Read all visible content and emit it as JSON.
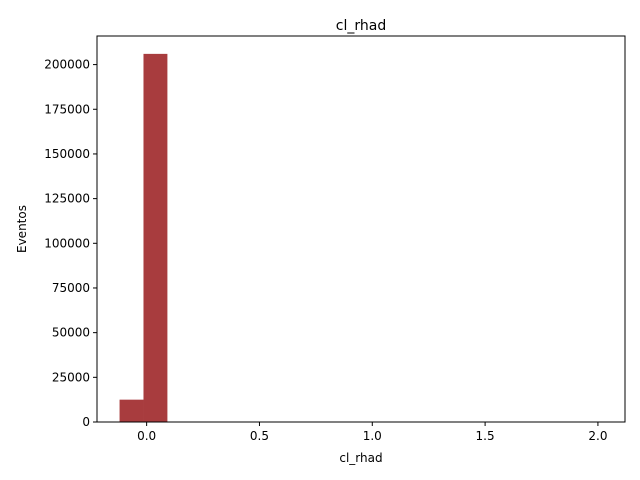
{
  "chart_data": {
    "type": "bar",
    "title": "cl_rhad",
    "xlabel": "cl_rhad",
    "ylabel": "Eventos",
    "xlim": [
      -0.22,
      2.12
    ],
    "ylim": [
      0,
      216000
    ],
    "x_ticks": [
      0.0,
      0.5,
      1.0,
      1.5,
      2.0
    ],
    "x_tick_labels": [
      "0.0",
      "0.5",
      "1.0",
      "1.5",
      "2.0"
    ],
    "y_ticks": [
      0,
      25000,
      50000,
      75000,
      100000,
      125000,
      150000,
      175000,
      200000
    ],
    "y_tick_labels": [
      "0",
      "25000",
      "50000",
      "75000",
      "100000",
      "125000",
      "150000",
      "175000",
      "200000"
    ],
    "bar_color": "#a83c3e",
    "grid": false,
    "legend": "none",
    "bins": [
      {
        "x0": -0.12,
        "x1": -0.014,
        "value": 12500
      },
      {
        "x0": -0.014,
        "x1": 0.092,
        "value": 206000
      },
      {
        "x0": 0.092,
        "x1": 0.198,
        "value": 0
      },
      {
        "x0": 0.198,
        "x1": 0.304,
        "value": 0
      },
      {
        "x0": 0.304,
        "x1": 0.41,
        "value": 0
      },
      {
        "x0": 0.41,
        "x1": 0.516,
        "value": 0
      },
      {
        "x0": 0.516,
        "x1": 0.622,
        "value": 0
      },
      {
        "x0": 0.622,
        "x1": 0.728,
        "value": 0
      },
      {
        "x0": 0.728,
        "x1": 0.834,
        "value": 0
      },
      {
        "x0": 0.834,
        "x1": 0.94,
        "value": 0
      },
      {
        "x0": 0.94,
        "x1": 1.046,
        "value": 0
      },
      {
        "x0": 1.046,
        "x1": 1.152,
        "value": 0
      },
      {
        "x0": 1.152,
        "x1": 1.258,
        "value": 0
      },
      {
        "x0": 1.258,
        "x1": 1.364,
        "value": 0
      },
      {
        "x0": 1.364,
        "x1": 1.47,
        "value": 0
      },
      {
        "x0": 1.47,
        "x1": 1.576,
        "value": 0
      },
      {
        "x0": 1.576,
        "x1": 1.682,
        "value": 0
      },
      {
        "x0": 1.682,
        "x1": 1.788,
        "value": 0
      },
      {
        "x0": 1.788,
        "x1": 1.894,
        "value": 0
      },
      {
        "x0": 1.894,
        "x1": 2.0,
        "value": 0
      }
    ]
  }
}
